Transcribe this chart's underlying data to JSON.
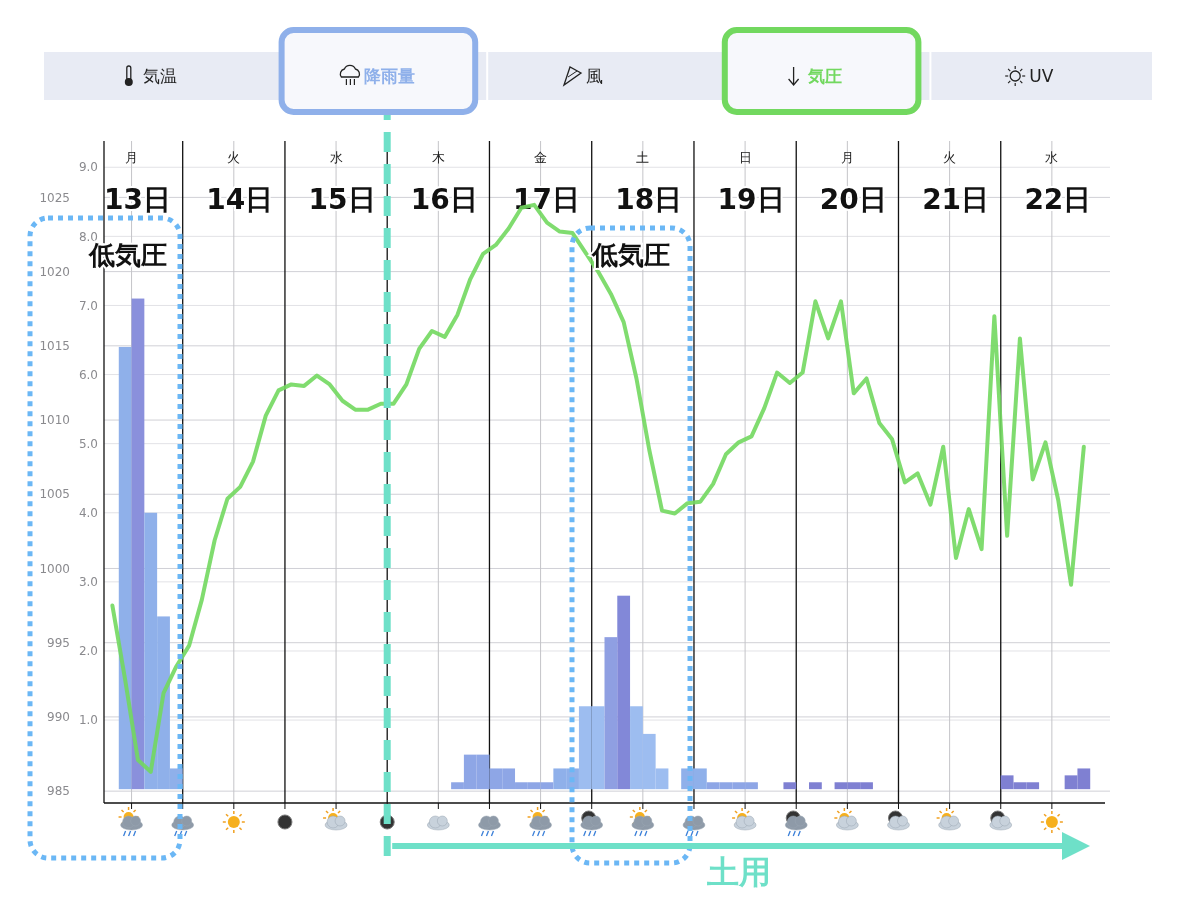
{
  "chart_data": {
    "type": "bar",
    "legend": "top",
    "grid": true,
    "categories": [
      null,
      null,
      null,
      null,
      null,
      null,
      null,
      null,
      null,
      null,
      null,
      null,
      null,
      null,
      null,
      null,
      null,
      null,
      null,
      null,
      null,
      null,
      null,
      null,
      null,
      null,
      null,
      null,
      null,
      null,
      null,
      null,
      null,
      null,
      null,
      null,
      null,
      null,
      null,
      null,
      null,
      null,
      null,
      null,
      null,
      null,
      null,
      null,
      null,
      null,
      null,
      null,
      null,
      null,
      null,
      null,
      null,
      null,
      null,
      null,
      null,
      null,
      null,
      null,
      null,
      null,
      null,
      null,
      null,
      null,
      null,
      null,
      null,
      null,
      null,
      null,
      null,
      null
    ],
    "ylim": [
      -0.2,
      9.38
    ],
    "yticks": [
      {
        "value": 1,
        "label": "1.0"
      },
      {
        "value": 2,
        "label": "2.0"
      },
      {
        "value": 3,
        "label": "3.0"
      },
      {
        "value": 4,
        "label": "4.0"
      },
      {
        "value": 5,
        "label": "5.0"
      },
      {
        "value": 6,
        "label": "6.0"
      },
      {
        "value": 7,
        "label": "7.0"
      },
      {
        "value": 8,
        "label": "8.0"
      },
      {
        "value": 9,
        "label": "9.0"
      }
    ],
    "y2lim": [
      984.2,
      1028.8
    ],
    "y2ticks": [
      985,
      990,
      995,
      1000,
      1005,
      1010,
      1015,
      1020,
      1025
    ],
    "series": [
      {
        "name": "降雨量",
        "color": "#8fb0ea",
        "values": [
          null,
          6.4,
          7.1,
          4.0,
          2.5,
          0.3,
          null,
          null,
          null,
          null,
          null,
          null,
          null,
          null,
          null,
          null,
          null,
          null,
          null,
          null,
          null,
          null,
          null,
          null,
          null,
          null,
          null,
          0.1,
          0.5,
          0.5,
          0.3,
          0.3,
          0.1,
          0.1,
          0.1,
          0.3,
          0.3,
          1.2,
          1.2,
          2.2,
          2.8,
          1.2,
          0.8,
          0.3,
          null,
          0.3,
          0.3,
          0.1,
          0.1,
          0.1,
          0.1,
          null,
          null,
          0.1,
          null,
          0.1,
          null,
          0.1,
          0.1,
          0.1,
          null,
          null,
          null,
          null,
          null,
          null,
          null,
          null,
          null,
          null,
          0.2,
          0.1,
          0.1,
          null,
          null,
          0.2,
          0.3,
          null
        ],
        "colors": [
          null,
          "#8fb0ea",
          "#8a90dc",
          "#8fb0ea",
          "#8fb0ea",
          "#8fb0ea",
          null,
          null,
          null,
          null,
          null,
          null,
          null,
          null,
          null,
          null,
          null,
          null,
          null,
          null,
          null,
          null,
          null,
          null,
          null,
          null,
          null,
          "#8ea6e6",
          "#8ea6e6",
          "#8ea6e6",
          "#8ea6e6",
          "#8ea6e6",
          "#8ea6e6",
          "#8ea6e6",
          "#8ea6e6",
          "#8fb0ea",
          "#8fb0ea",
          "#9dbdf0",
          "#9dbdf0",
          "#8f9fe2",
          "#8288d8",
          "#9dbdf0",
          "#9dbdf0",
          "#9dbdf0",
          null,
          "#8fb0ea",
          "#8fb0ea",
          "#8ea6e6",
          "#8ea6e6",
          "#8ea6e6",
          "#8ea6e6",
          null,
          null,
          "#7f80d2",
          null,
          "#7f80d2",
          null,
          "#7f80d2",
          "#7f80d2",
          "#7f80d2",
          null,
          null,
          null,
          null,
          null,
          null,
          null,
          null,
          null,
          null,
          "#7f80d2",
          "#7f80d2",
          "#7f80d2",
          null,
          null,
          "#7f80d2",
          "#7f80d2",
          null
        ]
      },
      {
        "name": "気圧",
        "type": "line",
        "axis": "y2",
        "color": "#72d85f",
        "values": [
          997.5,
          992.5,
          987.1,
          986.3,
          991.6,
          993.4,
          994.8,
          997.9,
          1001.9,
          1004.7,
          1005.5,
          1007.2,
          1010.3,
          1012.0,
          1012.4,
          1012.3,
          1013.0,
          1012.4,
          1011.3,
          1010.7,
          1010.7,
          1011.1,
          1011.1,
          1012.4,
          1014.8,
          1016.0,
          1015.6,
          1017.1,
          1019.5,
          1021.2,
          1021.8,
          1022.9,
          1024.3,
          1024.5,
          1023.3,
          1022.7,
          1022.6,
          1021.3,
          1020.0,
          1018.5,
          1016.6,
          1012.8,
          1008.0,
          1003.9,
          1003.7,
          1004.4,
          1004.5,
          1005.7,
          1007.7,
          1008.5,
          1008.9,
          1010.8,
          1013.2,
          1012.5,
          1013.2,
          1018.0,
          1015.5,
          1018.0,
          1011.8,
          1012.8,
          1009.8,
          1008.7,
          1005.8,
          1006.4,
          1004.3,
          1008.2,
          1000.7,
          1004.0,
          1001.3,
          1017.0,
          1002.2,
          1015.5,
          1006.0,
          1008.5,
          1004.6,
          998.9,
          1008.2,
          null
        ]
      }
    ],
    "annotations": [
      "気温",
      "風",
      "UV",
      "月",
      "火",
      "水",
      "木",
      "金",
      "土",
      "日",
      "月",
      "火",
      "水",
      "13日",
      "14日",
      "15日",
      "16日",
      "17日",
      "18日",
      "19日",
      "20日",
      "21日",
      "22日",
      "低気圧",
      "低気圧",
      "土用"
    ]
  }
}
